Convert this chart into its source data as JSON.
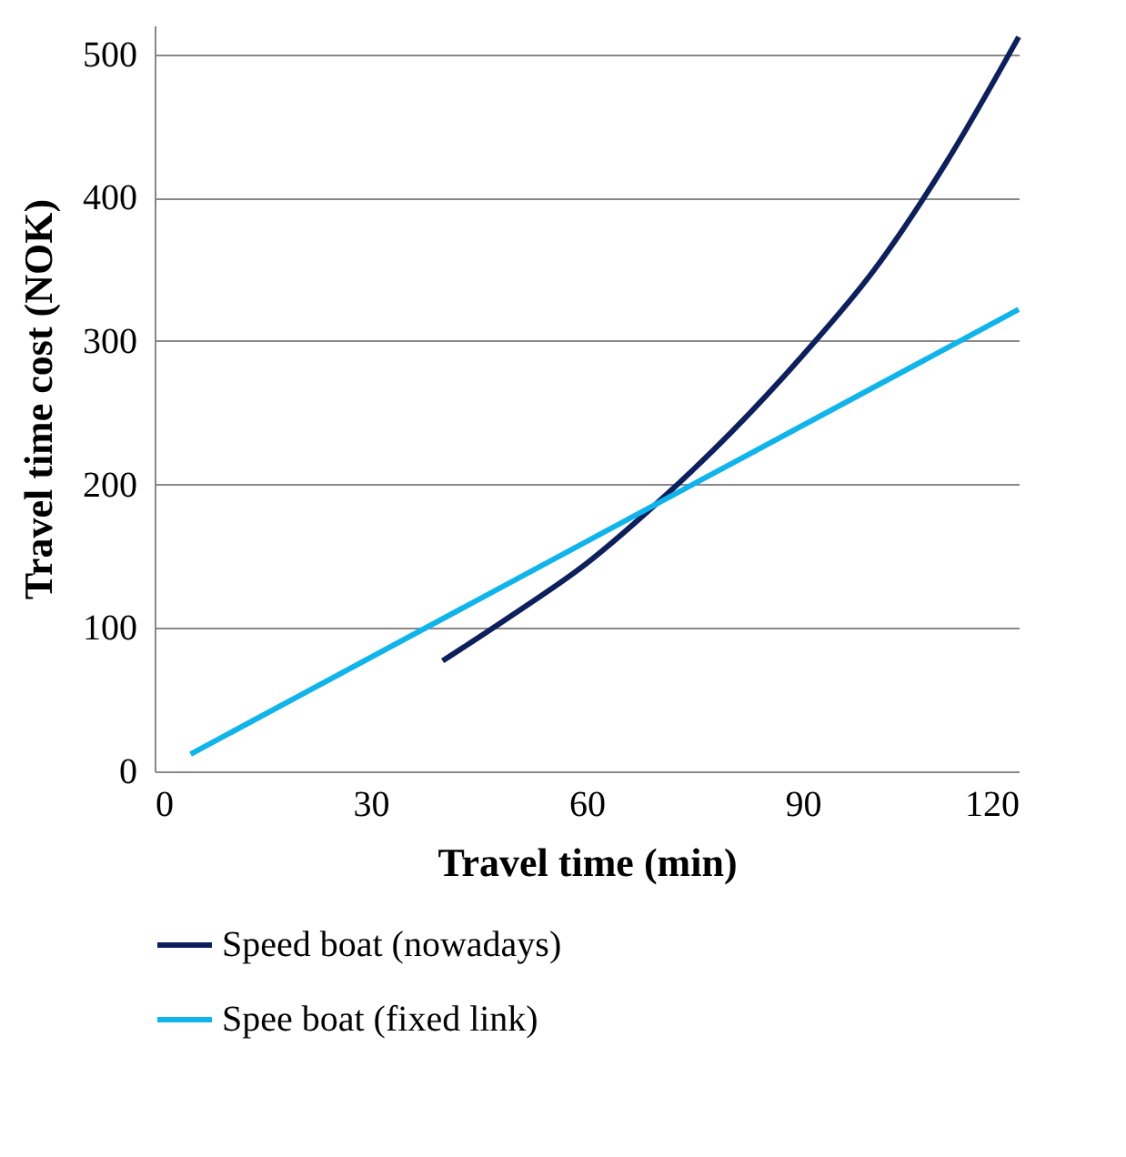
{
  "chart_data": {
    "type": "line",
    "xlabel": "Travel time (min)",
    "ylabel": "Travel time cost (NOK)",
    "xlim": [
      0,
      120
    ],
    "xticks": [
      0,
      30,
      60,
      90,
      120
    ],
    "ylim": [
      0,
      520
    ],
    "yticks": [
      0,
      100,
      200,
      300,
      400,
      500
    ],
    "grid": "y",
    "legend": "bottom",
    "line_style": "solid",
    "marker": "none",
    "series": [
      {
        "name": "Speed boat (nowadays)",
        "color": "#0d1f5c",
        "x": [
          40,
          50,
          60,
          70,
          80,
          90,
          100,
          110,
          120
        ],
        "values": [
          77,
          110,
          145,
          188,
          236,
          290,
          350,
          425,
          512
        ]
      },
      {
        "name": "Spee boat (fixed link)",
        "color": "#10b4ea",
        "x": [
          5,
          120
        ],
        "values": [
          12,
          322
        ]
      }
    ]
  }
}
